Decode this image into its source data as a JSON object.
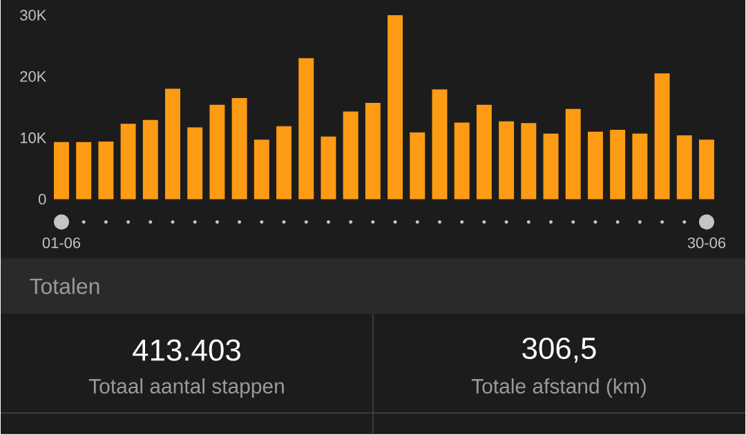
{
  "chart_data": [
    {
      "type": "bar",
      "categories": [
        "01-06",
        null,
        null,
        null,
        null,
        null,
        null,
        null,
        null,
        null,
        null,
        null,
        null,
        null,
        null,
        null,
        null,
        null,
        null,
        null,
        null,
        null,
        null,
        null,
        null,
        null,
        null,
        null,
        null,
        "30-06"
      ],
      "values": [
        9300,
        9300,
        9400,
        12300,
        12900,
        18000,
        11700,
        15400,
        16500,
        9700,
        11900,
        23000,
        10200,
        14300,
        15700,
        30000,
        10900,
        17900,
        12500,
        15400,
        12700,
        12400,
        10700,
        14700,
        11000,
        11300,
        10700,
        20500,
        10400,
        9700
      ],
      "color": "#fd9b14",
      "ylim": [
        0,
        30000
      ],
      "yticks": [
        0,
        {
          "value": 10000,
          "label": "10K"
        },
        {
          "value": 20000,
          "label": "20K"
        },
        {
          "value": 30000,
          "label": "30K"
        }
      ]
    },
    {
      "type": "other",
      "title": "Totalen",
      "annotations": [
        "413.403",
        "Totaal aantal stappen",
        "306,5",
        "Totale afstand (km)"
      ]
    }
  ]
}
